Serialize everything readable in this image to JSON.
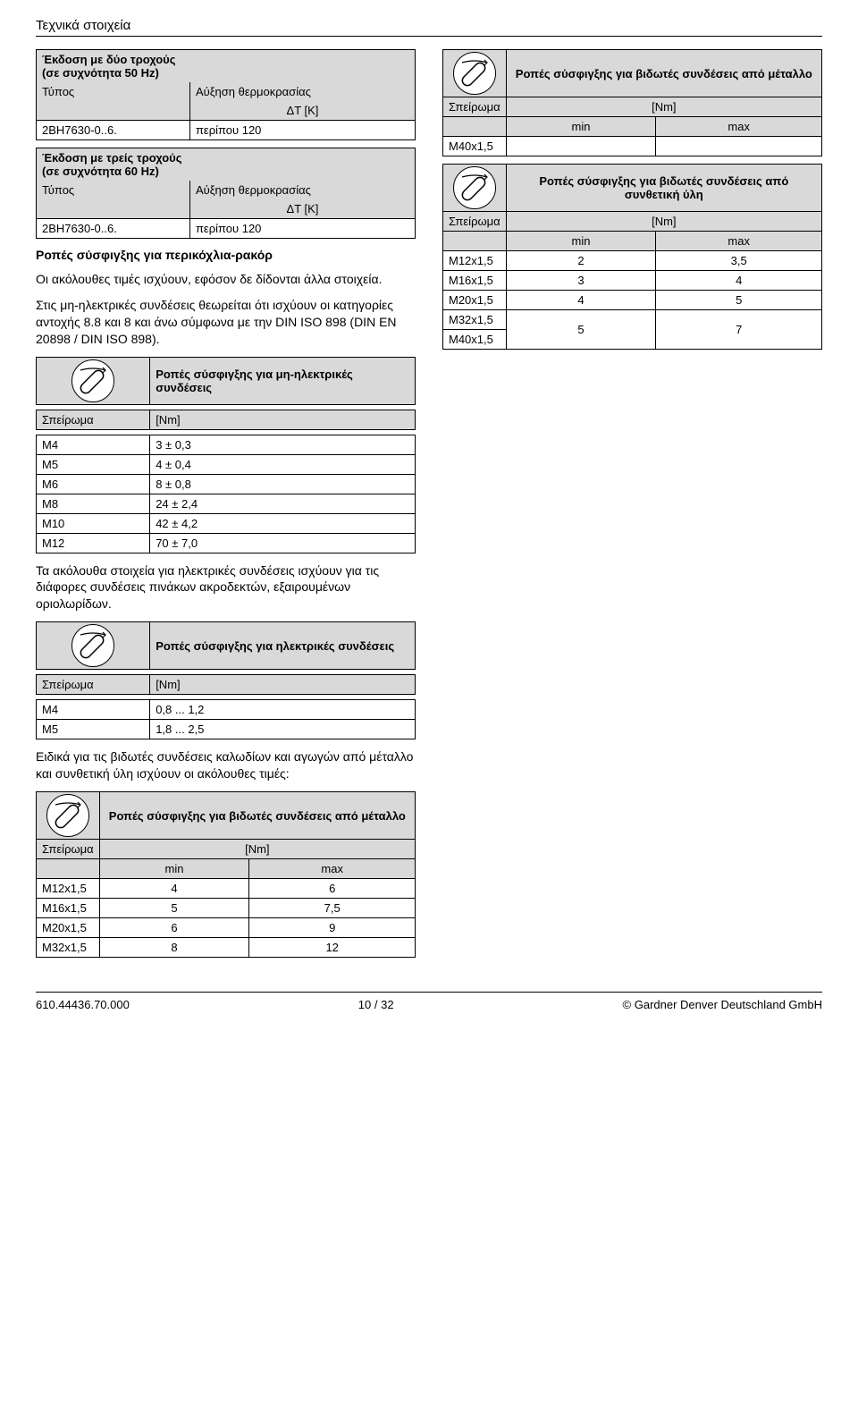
{
  "page_title": "Τεχνικά στοιχεία",
  "left": {
    "sec1_title": "Έκδοση με δύο τροχούς\n(σε συχνότητα 50 Hz)",
    "type_label": "Τύπος",
    "increase_label": "Αύξηση θερμοκρασίας",
    "dt_label": "ΔT [K]",
    "row1_model": "2BH7630-0..6.",
    "row1_val": "περίπου 120",
    "sec2_title": "Έκδοση με τρείς τροχούς\n(σε συχνότητα 60 Hz)",
    "row2_model": "2BH7630-0..6.",
    "row2_val": "περίπου 120",
    "torque_heading": "Ροπές σύσφιγξης για περικόχλια-ρακόρ",
    "para1": "Οι ακόλουθες τιμές ισχύουν, εφόσον δε δίδονται άλλα στοιχεία.",
    "para2": "Στις μη-ηλεκτρικές συνδέσεις θεωρείται ότι ισχύουν οι κατηγορίες αντοχής 8.8 και 8 και άνω σύμφωνα με την DIN ISO 898 (DIN EN 20898 / DIN ISO 898).",
    "t3_title": "Ροπές σύσφιγξης για μη-ηλεκτρικές συνδέσεις",
    "thread_label": "Σπείρωμα",
    "nm_label": "[Nm]",
    "t3_rows": [
      [
        "M4",
        "3 ± 0,3"
      ],
      [
        "M5",
        "4 ± 0,4"
      ],
      [
        "M6",
        "8 ± 0,8"
      ],
      [
        "M8",
        "24 ± 2,4"
      ],
      [
        "M10",
        "42 ± 4,2"
      ],
      [
        "M12",
        "70 ± 7,0"
      ]
    ],
    "para3": "Τα ακόλουθα στοιχεία για ηλεκτρικές συνδέσεις ισχύουν για τις διάφορες συνδέσεις πινάκων ακροδεκτών, εξαιρουμένων οριολωρίδων.",
    "t4_title": "Ροπές σύσφιγξης για ηλεκτρικές συνδέσεις",
    "t4_rows": [
      [
        "M4",
        "0,8 ... 1,2"
      ],
      [
        "M5",
        "1,8 ... 2,5"
      ]
    ],
    "para4": "Ειδικά για τις βιδωτές συνδέσεις καλωδίων και αγωγών από μέταλλο και συνθετική ύλη ισχύουν οι ακόλουθες τιμές:",
    "t5_title": "Ροπές σύσφιγξης για βιδωτές συνδέσεις από μέταλλο",
    "min_label": "min",
    "max_label": "max",
    "t5_rows": [
      [
        "M12x1,5",
        "4",
        "6"
      ],
      [
        "M16x1,5",
        "5",
        "7,5"
      ],
      [
        "M20x1,5",
        "6",
        "9"
      ],
      [
        "M32x1,5",
        "8",
        "12"
      ]
    ]
  },
  "right": {
    "t6_title": "Ροπές σύσφιγξης για βιδωτές συνδέσεις από μέταλλο",
    "t6_rows": [
      [
        "M40x1,5",
        "",
        ""
      ]
    ],
    "t7_title": "Ροπές σύσφιγξης για βιδωτές συνδέσεις από συνθετική ύλη",
    "t7_rows": [
      [
        "M12x1,5",
        "2",
        "3,5"
      ],
      [
        "M16x1,5",
        "3",
        "4"
      ],
      [
        "M20x1,5",
        "4",
        "5"
      ],
      [
        "M32x1,5",
        "5",
        "7"
      ],
      [
        "M40x1,5",
        "",
        ""
      ]
    ]
  },
  "footer": {
    "left": "610.44436.70.000",
    "center": "10 / 32",
    "right": "© Gardner Denver Deutschland GmbH"
  },
  "colors": {
    "shade": "#d9d9d9",
    "border": "#000000",
    "text": "#000000",
    "bg": "#ffffff"
  }
}
